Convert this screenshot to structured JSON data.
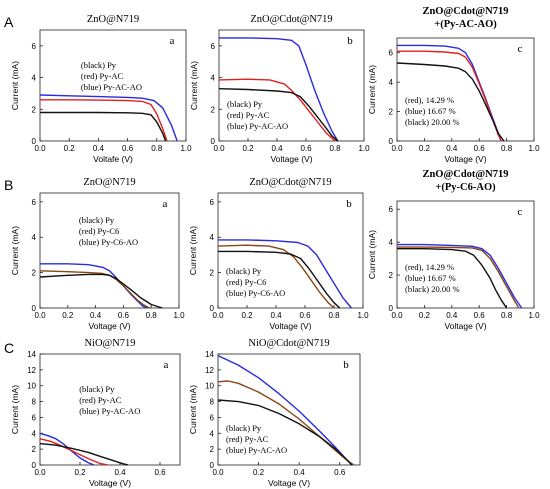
{
  "row_labels": [
    "A",
    "B",
    "C"
  ],
  "colors": {
    "black": "#111111",
    "red": "#e02020",
    "blue": "#2a2ae0",
    "brown": "#8b4513"
  },
  "chart_data": [
    {
      "id": "Aa",
      "type": "line",
      "title": "ZnO@N719",
      "letter": "a",
      "xlabel": "Voltafe (V)",
      "ylabel": "Current (mA)",
      "xlim": [
        0,
        1.0
      ],
      "ylim": [
        0,
        7
      ],
      "xticks": [
        0.0,
        0.2,
        0.4,
        0.6,
        0.8,
        1.0
      ],
      "yticks": [
        0,
        2,
        4,
        6
      ],
      "legend_lines": [
        "(black) Py",
        "(red) Py-AC",
        "(blue) Py-AC-AO"
      ],
      "series": [
        {
          "color": "blue",
          "x": [
            0,
            0.2,
            0.4,
            0.6,
            0.7,
            0.78,
            0.84,
            0.9,
            0.94
          ],
          "y": [
            2.9,
            2.85,
            2.8,
            2.75,
            2.7,
            2.55,
            2.1,
            1.0,
            0
          ]
        },
        {
          "color": "red",
          "x": [
            0,
            0.2,
            0.4,
            0.6,
            0.7,
            0.76,
            0.8,
            0.84,
            0.87
          ],
          "y": [
            2.6,
            2.6,
            2.58,
            2.55,
            2.5,
            2.3,
            1.7,
            0.8,
            0
          ]
        },
        {
          "color": "black",
          "x": [
            0,
            0.2,
            0.4,
            0.6,
            0.7,
            0.76,
            0.8,
            0.84,
            0.86
          ],
          "y": [
            1.8,
            1.8,
            1.8,
            1.78,
            1.75,
            1.65,
            1.2,
            0.5,
            0
          ]
        }
      ]
    },
    {
      "id": "Ab",
      "type": "line",
      "title": "ZnO@Cdot@N719",
      "letter": "b",
      "xlabel": "Voltage (V)",
      "ylabel": "Current (mA)",
      "xlim": [
        0,
        1.0
      ],
      "ylim": [
        0,
        7
      ],
      "xticks": [
        0.0,
        0.2,
        0.4,
        0.6,
        0.8,
        1.0
      ],
      "yticks": [
        0,
        2,
        4,
        6
      ],
      "legend_lines": [
        "(black) Py",
        "(red) Py-AC",
        "(blue) Py-AC-AO"
      ],
      "series": [
        {
          "color": "blue",
          "x": [
            0,
            0.2,
            0.4,
            0.5,
            0.55,
            0.6,
            0.66,
            0.72,
            0.78,
            0.82
          ],
          "y": [
            6.5,
            6.5,
            6.45,
            6.35,
            6.0,
            4.8,
            3.2,
            1.8,
            0.6,
            0
          ]
        },
        {
          "color": "red",
          "x": [
            0,
            0.2,
            0.35,
            0.45,
            0.5,
            0.56,
            0.62,
            0.68,
            0.74,
            0.8
          ],
          "y": [
            3.85,
            3.9,
            3.85,
            3.6,
            3.2,
            2.6,
            1.9,
            1.2,
            0.5,
            0
          ]
        },
        {
          "color": "black",
          "x": [
            0,
            0.2,
            0.4,
            0.5,
            0.56,
            0.62,
            0.68,
            0.74,
            0.78,
            0.82
          ],
          "y": [
            3.3,
            3.25,
            3.15,
            3.05,
            2.8,
            2.2,
            1.5,
            0.8,
            0.3,
            0
          ]
        }
      ]
    },
    {
      "id": "Ac",
      "type": "line",
      "title": "ZnO@Cdot@N719",
      "subtitle": "+(Py-AC-AO)",
      "letter": "c",
      "xlabel": "Voltage (V)",
      "ylabel": "Current (mA)",
      "xlim": [
        0,
        1.0
      ],
      "ylim": [
        0,
        7
      ],
      "xticks": [
        0.0,
        0.2,
        0.4,
        0.6,
        0.8,
        1.0
      ],
      "yticks": [
        0,
        2,
        4,
        6
      ],
      "legend_lines": [
        "(red), 14.29 %",
        "(blue) 16.67 %",
        "(black) 20.00 %"
      ],
      "series": [
        {
          "color": "blue",
          "x": [
            0,
            0.2,
            0.35,
            0.45,
            0.5,
            0.55,
            0.6,
            0.65,
            0.7,
            0.74,
            0.76
          ],
          "y": [
            6.5,
            6.5,
            6.45,
            6.3,
            6.0,
            5.2,
            4.0,
            2.8,
            1.5,
            0.5,
            0
          ]
        },
        {
          "color": "red",
          "x": [
            0,
            0.2,
            0.35,
            0.45,
            0.5,
            0.55,
            0.6,
            0.65,
            0.7,
            0.74,
            0.76
          ],
          "y": [
            6.1,
            6.1,
            6.05,
            5.95,
            5.7,
            5.0,
            3.9,
            2.7,
            1.4,
            0.4,
            0
          ]
        },
        {
          "color": "black",
          "x": [
            0,
            0.2,
            0.35,
            0.45,
            0.5,
            0.55,
            0.6,
            0.65,
            0.7,
            0.74,
            0.78
          ],
          "y": [
            5.3,
            5.2,
            5.1,
            4.95,
            4.7,
            4.2,
            3.4,
            2.4,
            1.4,
            0.5,
            0
          ]
        }
      ]
    },
    {
      "id": "Ba",
      "type": "line",
      "title": "ZnO@N719",
      "letter": "a",
      "xlabel": "Voltage (V)",
      "ylabel": "Current (mA)",
      "xlim": [
        0,
        1.0
      ],
      "ylim": [
        0,
        6.5
      ],
      "xticks": [
        0.0,
        0.2,
        0.4,
        0.6,
        0.8,
        1.0
      ],
      "yticks": [
        0,
        2,
        4,
        6
      ],
      "legend_lines": [
        "(black) Py",
        "(red) Py-C6",
        "(blue) Py-C6-AO"
      ],
      "series": [
        {
          "color": "blue",
          "x": [
            0,
            0.2,
            0.35,
            0.45,
            0.5,
            0.55,
            0.6,
            0.65,
            0.7,
            0.74,
            0.77
          ],
          "y": [
            2.5,
            2.5,
            2.45,
            2.3,
            2.1,
            1.7,
            1.25,
            0.8,
            0.4,
            0.1,
            0
          ]
        },
        {
          "color": "brown",
          "x": [
            0,
            0.2,
            0.35,
            0.45,
            0.5,
            0.55,
            0.6,
            0.65,
            0.7,
            0.75,
            0.79
          ],
          "y": [
            2.1,
            2.05,
            2.0,
            1.95,
            1.85,
            1.6,
            1.25,
            0.85,
            0.45,
            0.15,
            0
          ]
        },
        {
          "color": "black",
          "x": [
            0,
            0.2,
            0.35,
            0.45,
            0.5,
            0.55,
            0.6,
            0.66,
            0.72,
            0.8,
            0.88
          ],
          "y": [
            1.75,
            1.85,
            1.9,
            1.9,
            1.85,
            1.65,
            1.35,
            1.0,
            0.6,
            0.2,
            0
          ]
        }
      ]
    },
    {
      "id": "Bb",
      "type": "line",
      "title": "ZnO@Cdot@N719",
      "letter": "b",
      "xlabel": "Voltage (V)",
      "ylabel": "Current (mA)",
      "xlim": [
        0,
        1.0
      ],
      "ylim": [
        0,
        6.5
      ],
      "xticks": [
        0.0,
        0.2,
        0.4,
        0.6,
        0.8,
        1.0
      ],
      "yticks": [
        0,
        2,
        4,
        6
      ],
      "legend_lines": [
        "(black) Py",
        "(red) Py-C6",
        "(blue) Py-C6-AO"
      ],
      "series": [
        {
          "color": "blue",
          "x": [
            0,
            0.2,
            0.4,
            0.55,
            0.62,
            0.68,
            0.74,
            0.8,
            0.86,
            0.92
          ],
          "y": [
            3.85,
            3.85,
            3.8,
            3.7,
            3.5,
            3.0,
            2.2,
            1.4,
            0.6,
            0
          ]
        },
        {
          "color": "brown",
          "x": [
            0,
            0.2,
            0.35,
            0.45,
            0.52,
            0.58,
            0.64,
            0.7,
            0.76,
            0.8
          ],
          "y": [
            3.5,
            3.55,
            3.5,
            3.3,
            2.9,
            2.3,
            1.6,
            0.9,
            0.3,
            0
          ]
        },
        {
          "color": "black",
          "x": [
            0,
            0.2,
            0.4,
            0.5,
            0.57,
            0.63,
            0.69,
            0.75,
            0.8,
            0.84
          ],
          "y": [
            3.2,
            3.2,
            3.15,
            3.05,
            2.8,
            2.2,
            1.5,
            0.8,
            0.3,
            0
          ]
        }
      ]
    },
    {
      "id": "Bc",
      "type": "line",
      "title": "ZnO@Cdot@N719",
      "subtitle": "+(Py-C6-AO)",
      "letter": "c",
      "xlabel": "Voltage (V)",
      "ylabel": "Current (mA)",
      "xlim": [
        0,
        1.0
      ],
      "ylim": [
        0,
        6.5
      ],
      "xticks": [
        0.0,
        0.2,
        0.4,
        0.6,
        0.8,
        1.0
      ],
      "yticks": [
        0,
        2,
        4,
        6
      ],
      "legend_lines": [
        "(red), 14.29 %",
        "(blue) 16.67 %",
        "(black) 20.00 %"
      ],
      "series": [
        {
          "color": "blue",
          "x": [
            0,
            0.2,
            0.4,
            0.55,
            0.62,
            0.68,
            0.74,
            0.8,
            0.86,
            0.91
          ],
          "y": [
            3.85,
            3.85,
            3.8,
            3.75,
            3.6,
            3.2,
            2.4,
            1.5,
            0.6,
            0
          ]
        },
        {
          "color": "brown",
          "x": [
            0,
            0.2,
            0.4,
            0.55,
            0.62,
            0.68,
            0.74,
            0.8,
            0.86,
            0.89
          ],
          "y": [
            3.7,
            3.7,
            3.68,
            3.65,
            3.5,
            3.0,
            2.2,
            1.3,
            0.4,
            0
          ]
        },
        {
          "color": "black",
          "x": [
            0,
            0.2,
            0.4,
            0.5,
            0.56,
            0.62,
            0.68,
            0.72,
            0.76,
            0.8
          ],
          "y": [
            3.6,
            3.6,
            3.55,
            3.45,
            3.2,
            2.6,
            1.8,
            1.1,
            0.5,
            0
          ]
        }
      ]
    },
    {
      "id": "Ca",
      "type": "line",
      "title": "NiO@N719",
      "letter": "a",
      "xlabel": "Voltage (V)",
      "ylabel": "Current (mA)",
      "xlim": [
        0,
        0.7
      ],
      "ylim": [
        0,
        14
      ],
      "xticks": [
        0.0,
        0.2,
        0.4,
        0.6
      ],
      "yticks": [
        0,
        2,
        4,
        6,
        8,
        10,
        12,
        14
      ],
      "legend_lines": [
        "(black) Py",
        "(red) Py-AC",
        "(blue) Py-AC-AO"
      ],
      "series": [
        {
          "color": "blue",
          "x": [
            0,
            0.04,
            0.08,
            0.12,
            0.16,
            0.2,
            0.24,
            0.27
          ],
          "y": [
            4.0,
            3.7,
            3.3,
            2.6,
            1.7,
            0.9,
            0.3,
            0
          ]
        },
        {
          "color": "red",
          "x": [
            0,
            0.05,
            0.1,
            0.15,
            0.2,
            0.25,
            0.3,
            0.34
          ],
          "y": [
            3.3,
            3.0,
            2.5,
            1.9,
            1.3,
            0.7,
            0.2,
            0
          ]
        },
        {
          "color": "black",
          "x": [
            0,
            0.08,
            0.16,
            0.24,
            0.3,
            0.36,
            0.41,
            0.44
          ],
          "y": [
            2.7,
            2.5,
            2.1,
            1.6,
            1.1,
            0.6,
            0.2,
            0
          ]
        }
      ]
    },
    {
      "id": "Cb",
      "type": "line",
      "title": "NiO@Cdot@N719",
      "letter": "b",
      "xlabel": "Voltage (V)",
      "ylabel": "Current (mA)",
      "xlim": [
        0,
        0.7
      ],
      "ylim": [
        0,
        14
      ],
      "xticks": [
        0.0,
        0.2,
        0.4,
        0.6
      ],
      "yticks": [
        0,
        2,
        4,
        6,
        8,
        10,
        12,
        14
      ],
      "legend_lines": [
        "(black) Py",
        "(red) Py-AC",
        "(blue) Py-AC-AO"
      ],
      "series": [
        {
          "color": "blue",
          "x": [
            0,
            0.1,
            0.2,
            0.3,
            0.4,
            0.5,
            0.58,
            0.63,
            0.66
          ],
          "y": [
            13.8,
            12.6,
            11.0,
            9.0,
            6.8,
            4.3,
            2.2,
            0.8,
            0
          ]
        },
        {
          "color": "brown",
          "x": [
            0,
            0.05,
            0.1,
            0.2,
            0.3,
            0.4,
            0.5,
            0.58,
            0.64,
            0.67
          ],
          "y": [
            10.5,
            10.6,
            10.3,
            9.2,
            7.7,
            5.8,
            3.6,
            1.8,
            0.5,
            0
          ]
        },
        {
          "color": "black",
          "x": [
            0,
            0.1,
            0.2,
            0.3,
            0.4,
            0.5,
            0.58,
            0.63,
            0.66
          ],
          "y": [
            8.2,
            8.0,
            7.5,
            6.5,
            5.2,
            3.6,
            2.0,
            0.8,
            0
          ]
        }
      ]
    }
  ]
}
